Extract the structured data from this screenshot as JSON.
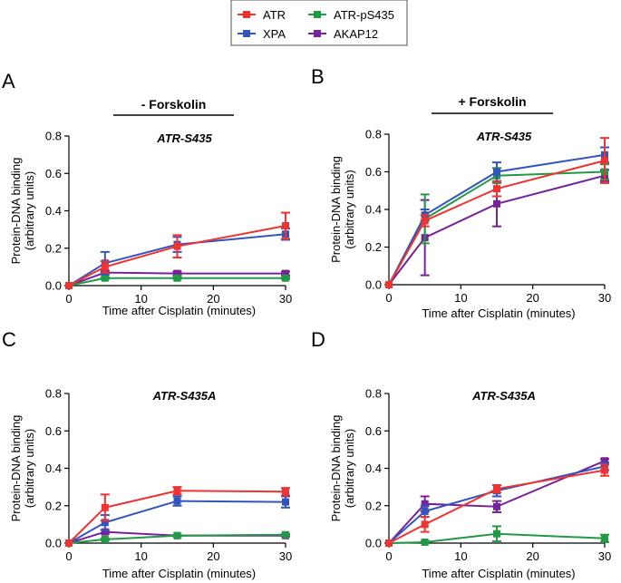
{
  "legend": {
    "entries": [
      {
        "name": "ATR",
        "color": "#ee3333"
      },
      {
        "name": "ATR-pS435",
        "color": "#229944"
      },
      {
        "name": "XPA",
        "color": "#3355bb"
      },
      {
        "name": "AKAP12",
        "color": "#772299"
      }
    ]
  },
  "chart_data": [
    {
      "panel": "A",
      "type": "line",
      "condition": "- Forskolin",
      "subtitle": "ATR-S435",
      "xlabel": "Time after Cisplatin (minutes)",
      "ylabel": [
        "Protein-DNA binding",
        "(arbitrary units)"
      ],
      "xlim": [
        0,
        30
      ],
      "ylim": [
        0,
        0.8
      ],
      "xticks": [
        "0",
        "10",
        "20",
        "30"
      ],
      "yticks": [
        "0.0",
        "0.2",
        "0.4",
        "0.6",
        "0.8"
      ],
      "x": [
        0,
        5,
        15,
        30
      ],
      "series": [
        {
          "name": "ATR",
          "color": "#ee3333",
          "values": [
            0,
            0.1,
            0.21,
            0.32
          ],
          "errors": [
            0,
            0.03,
            0.06,
            0.07
          ]
        },
        {
          "name": "XPA",
          "color": "#3355bb",
          "values": [
            0,
            0.12,
            0.22,
            0.275
          ],
          "errors": [
            0,
            0.06,
            0.04,
            0.03
          ]
        },
        {
          "name": "ATR-pS435",
          "color": "#229944",
          "values": [
            0,
            0.04,
            0.04,
            0.04
          ],
          "errors": [
            0,
            0.005,
            0.005,
            0.005
          ]
        },
        {
          "name": "AKAP12",
          "color": "#772299",
          "values": [
            0,
            0.07,
            0.065,
            0.065
          ],
          "errors": [
            0,
            0.01,
            0.01,
            0.01
          ]
        }
      ]
    },
    {
      "panel": "B",
      "type": "line",
      "condition": "+ Forskolin",
      "subtitle": "ATR-S435",
      "xlabel": "Time after Cisplatin (minutes)",
      "ylabel": [
        "Protein-DNA binding",
        "(arbitrary units)"
      ],
      "xlim": [
        0,
        30
      ],
      "ylim": [
        0,
        0.8
      ],
      "xticks": [
        "0",
        "10",
        "20",
        "30"
      ],
      "yticks": [
        "0.0",
        "0.2",
        "0.4",
        "0.6",
        "0.8"
      ],
      "x": [
        0,
        5,
        15,
        30
      ],
      "series": [
        {
          "name": "ATR",
          "color": "#ee3333",
          "values": [
            0,
            0.34,
            0.51,
            0.66
          ],
          "errors": [
            0,
            0.03,
            0.04,
            0.12
          ]
        },
        {
          "name": "XPA",
          "color": "#3355bb",
          "values": [
            0,
            0.37,
            0.6,
            0.69
          ],
          "errors": [
            0,
            0.03,
            0.05,
            0.04
          ]
        },
        {
          "name": "ATR-pS435",
          "color": "#229944",
          "values": [
            0,
            0.35,
            0.58,
            0.6
          ],
          "errors": [
            0,
            0.13,
            0.04,
            0.04
          ]
        },
        {
          "name": "AKAP12",
          "color": "#772299",
          "values": [
            0,
            0.25,
            0.43,
            0.58
          ],
          "errors": [
            0,
            0.2,
            0.12,
            0.03
          ]
        }
      ]
    },
    {
      "panel": "C",
      "type": "line",
      "condition": "",
      "subtitle": "ATR-S435A",
      "xlabel": "Time after Cisplatin (minutes)",
      "ylabel": [
        "Protein-DNA binding",
        "(arbitrary units)"
      ],
      "xlim": [
        0,
        30
      ],
      "ylim": [
        0,
        0.8
      ],
      "xticks": [
        "0",
        "10",
        "20",
        "30"
      ],
      "yticks": [
        "0.0",
        "0.2",
        "0.4",
        "0.6",
        "0.8"
      ],
      "x": [
        0,
        5,
        15,
        30
      ],
      "series": [
        {
          "name": "ATR",
          "color": "#ee3333",
          "values": [
            0,
            0.19,
            0.28,
            0.275
          ],
          "errors": [
            0,
            0.07,
            0.02,
            0.02
          ]
        },
        {
          "name": "XPA",
          "color": "#3355bb",
          "values": [
            0,
            0.11,
            0.225,
            0.22
          ],
          "errors": [
            0,
            0.04,
            0.025,
            0.03
          ]
        },
        {
          "name": "ATR-pS435",
          "color": "#229944",
          "values": [
            0,
            0.02,
            0.04,
            0.045
          ],
          "errors": [
            0,
            0.005,
            0.005,
            0.005
          ]
        },
        {
          "name": "AKAP12",
          "color": "#772299",
          "values": [
            0,
            0.06,
            0.04,
            0.04
          ],
          "errors": [
            0,
            0.01,
            0.005,
            0.005
          ]
        }
      ]
    },
    {
      "panel": "D",
      "type": "line",
      "condition": "",
      "subtitle": "ATR-S435A",
      "xlabel": "Time after Cisplatin (minutes)",
      "ylabel": [
        "Protein-DNA binding",
        "(arbitrary units)"
      ],
      "xlim": [
        0,
        30
      ],
      "ylim": [
        0,
        0.8
      ],
      "xticks": [
        "0",
        "10",
        "20",
        "30"
      ],
      "yticks": [
        "0.0",
        "0.2",
        "0.4",
        "0.6",
        "0.8"
      ],
      "x": [
        0,
        5,
        15,
        30
      ],
      "series": [
        {
          "name": "ATR",
          "color": "#ee3333",
          "values": [
            0,
            0.1,
            0.29,
            0.39
          ],
          "errors": [
            0,
            0.04,
            0.02,
            0.03
          ]
        },
        {
          "name": "XPA",
          "color": "#3355bb",
          "values": [
            0,
            0.17,
            0.28,
            0.41
          ],
          "errors": [
            0,
            0.03,
            0.03,
            0.02
          ]
        },
        {
          "name": "ATR-pS435",
          "color": "#229944",
          "values": [
            0,
            0.005,
            0.05,
            0.025
          ],
          "errors": [
            0,
            0.005,
            0.04,
            0.02
          ]
        },
        {
          "name": "AKAP12",
          "color": "#772299",
          "values": [
            0,
            0.21,
            0.195,
            0.44
          ],
          "errors": [
            0,
            0.04,
            0.03,
            0.01
          ]
        }
      ]
    }
  ]
}
